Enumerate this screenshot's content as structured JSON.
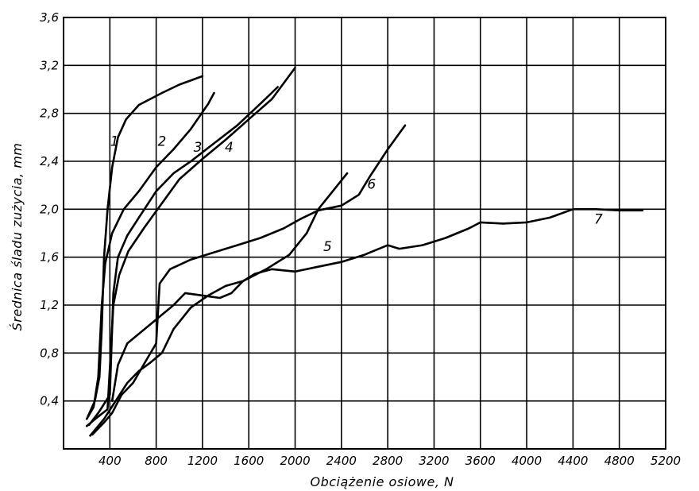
{
  "chart_data": {
    "type": "line",
    "title": "",
    "xlabel": "Obciążenie osiowe, N",
    "ylabel": "Średnica śladu zużycia, mm",
    "xlim": [
      0,
      5200
    ],
    "ylim": [
      0,
      3.6
    ],
    "grid": true,
    "x_ticks": [
      400,
      800,
      1200,
      1600,
      2000,
      2400,
      2800,
      3200,
      3600,
      4000,
      4400,
      4800,
      5200
    ],
    "x_tick_labels": [
      "400",
      "800",
      "1200",
      "1600",
      "2000",
      "2400",
      "2800",
      "3200",
      "3600",
      "4000",
      "4400",
      "4800",
      "5200"
    ],
    "y_ticks": [
      0.4,
      0.8,
      1.2,
      1.6,
      2.0,
      2.4,
      2.8,
      3.2,
      3.6
    ],
    "y_tick_labels": [
      "0,4",
      "0,8",
      "1,2",
      "1,6",
      "2,0",
      "2,4",
      "2,8",
      "3,2",
      "3,6"
    ],
    "series": [
      {
        "name": "1",
        "label_at": [
          440,
          2.53
        ],
        "points": [
          [
            210,
            0.27
          ],
          [
            270,
            0.4
          ],
          [
            310,
            0.6
          ],
          [
            330,
            1.0
          ],
          [
            350,
            1.6
          ],
          [
            380,
            2.0
          ],
          [
            420,
            2.35
          ],
          [
            470,
            2.6
          ],
          [
            540,
            2.75
          ],
          [
            650,
            2.87
          ],
          [
            850,
            2.97
          ],
          [
            1000,
            3.04
          ],
          [
            1200,
            3.11
          ]
        ]
      },
      {
        "name": "2",
        "label_at": [
          850,
          2.53
        ],
        "points": [
          [
            200,
            0.25
          ],
          [
            260,
            0.35
          ],
          [
            300,
            0.6
          ],
          [
            330,
            1.2
          ],
          [
            360,
            1.55
          ],
          [
            420,
            1.8
          ],
          [
            520,
            2.0
          ],
          [
            650,
            2.15
          ],
          [
            800,
            2.35
          ],
          [
            950,
            2.5
          ],
          [
            1100,
            2.67
          ],
          [
            1250,
            2.88
          ],
          [
            1300,
            2.97
          ]
        ]
      },
      {
        "name": "3",
        "label_at": [
          1160,
          2.48
        ],
        "points": [
          [
            220,
            0.2
          ],
          [
            300,
            0.3
          ],
          [
            400,
            0.45
          ],
          [
            430,
            1.3
          ],
          [
            470,
            1.6
          ],
          [
            550,
            1.78
          ],
          [
            650,
            1.93
          ],
          [
            800,
            2.15
          ],
          [
            950,
            2.3
          ],
          [
            1100,
            2.4
          ],
          [
            1300,
            2.55
          ],
          [
            1500,
            2.7
          ],
          [
            1700,
            2.88
          ],
          [
            1850,
            3.02
          ]
        ]
      },
      {
        "name": "4",
        "label_at": [
          1430,
          2.48
        ],
        "points": [
          [
            200,
            0.19
          ],
          [
            300,
            0.27
          ],
          [
            380,
            0.33
          ],
          [
            430,
            1.2
          ],
          [
            480,
            1.45
          ],
          [
            560,
            1.65
          ],
          [
            700,
            1.85
          ],
          [
            850,
            2.05
          ],
          [
            1000,
            2.25
          ],
          [
            1200,
            2.42
          ],
          [
            1400,
            2.58
          ],
          [
            1600,
            2.75
          ],
          [
            1800,
            2.92
          ],
          [
            2000,
            3.18
          ]
        ]
      },
      {
        "name": "5",
        "label_at": [
          2280,
          1.65
        ],
        "points": [
          [
            230,
            0.11
          ],
          [
            350,
            0.25
          ],
          [
            450,
            0.4
          ],
          [
            550,
            0.55
          ],
          [
            650,
            0.65
          ],
          [
            750,
            0.72
          ],
          [
            850,
            0.8
          ],
          [
            950,
            1.0
          ],
          [
            1100,
            1.18
          ],
          [
            1250,
            1.28
          ],
          [
            1400,
            1.36
          ],
          [
            1550,
            1.4
          ],
          [
            1750,
            1.5
          ],
          [
            1950,
            1.62
          ],
          [
            2100,
            1.8
          ],
          [
            2200,
            2.0
          ],
          [
            2300,
            2.12
          ],
          [
            2450,
            2.3
          ]
        ]
      },
      {
        "name": "6",
        "label_at": [
          2660,
          2.17
        ],
        "points": [
          [
            250,
            0.12
          ],
          [
            350,
            0.22
          ],
          [
            420,
            0.3
          ],
          [
            500,
            0.45
          ],
          [
            600,
            0.55
          ],
          [
            720,
            0.75
          ],
          [
            800,
            0.88
          ],
          [
            830,
            1.38
          ],
          [
            920,
            1.5
          ],
          [
            1100,
            1.58
          ],
          [
            1300,
            1.64
          ],
          [
            1500,
            1.7
          ],
          [
            1700,
            1.76
          ],
          [
            1900,
            1.84
          ],
          [
            2050,
            1.92
          ],
          [
            2200,
            1.99
          ],
          [
            2400,
            2.03
          ],
          [
            2550,
            2.12
          ],
          [
            2650,
            2.28
          ],
          [
            2800,
            2.5
          ],
          [
            2950,
            2.7
          ]
        ]
      },
      {
        "name": "7",
        "label_at": [
          4620,
          1.88
        ],
        "points": [
          [
            420,
            0.4
          ],
          [
            470,
            0.7
          ],
          [
            550,
            0.88
          ],
          [
            700,
            1.0
          ],
          [
            850,
            1.12
          ],
          [
            950,
            1.2
          ],
          [
            1050,
            1.3
          ],
          [
            1200,
            1.28
          ],
          [
            1350,
            1.26
          ],
          [
            1450,
            1.3
          ],
          [
            1550,
            1.4
          ],
          [
            1650,
            1.46
          ],
          [
            1800,
            1.5
          ],
          [
            2000,
            1.48
          ],
          [
            2200,
            1.52
          ],
          [
            2400,
            1.56
          ],
          [
            2600,
            1.62
          ],
          [
            2750,
            1.68
          ],
          [
            2800,
            1.7
          ],
          [
            2900,
            1.67
          ],
          [
            3100,
            1.7
          ],
          [
            3300,
            1.76
          ],
          [
            3500,
            1.84
          ],
          [
            3600,
            1.89
          ],
          [
            3800,
            1.88
          ],
          [
            4000,
            1.89
          ],
          [
            4200,
            1.93
          ],
          [
            4400,
            2.0
          ],
          [
            4600,
            2.0
          ],
          [
            4800,
            1.99
          ],
          [
            5000,
            1.99
          ]
        ]
      }
    ]
  }
}
